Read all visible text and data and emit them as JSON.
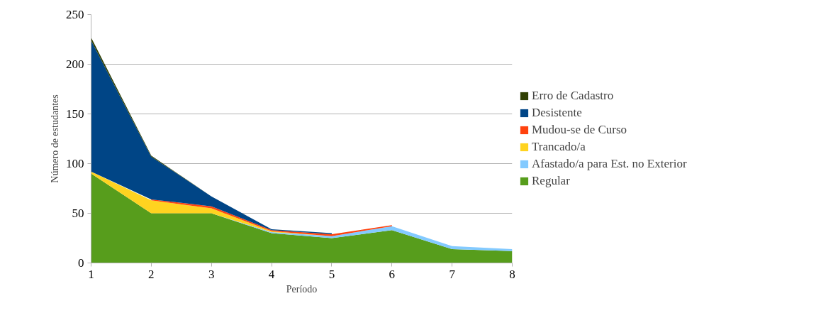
{
  "chart_data": {
    "type": "area",
    "stacked": true,
    "xlabel": "Período",
    "ylabel": "Número de estudantes",
    "x": [
      1,
      2,
      3,
      4,
      5,
      6,
      7,
      8
    ],
    "xlim": [
      1,
      8
    ],
    "xticks": [
      1,
      2,
      3,
      4,
      5,
      6,
      7,
      8
    ],
    "ylim": [
      0,
      250
    ],
    "yticks": [
      0,
      50,
      100,
      150,
      200,
      250
    ],
    "grid": "y",
    "legend": "right",
    "series": [
      {
        "name": "Regular",
        "color": "#579d1c",
        "values": [
          90,
          50,
          50,
          30,
          25,
          33,
          14,
          12
        ]
      },
      {
        "name": "Afastado/a para Est. no Exterior",
        "color": "#83caff",
        "values": [
          null,
          null,
          0,
          1,
          2,
          4,
          3,
          2
        ]
      },
      {
        "name": "Trancado/a",
        "color": "#ffd320",
        "values": [
          2,
          13,
          5,
          1,
          0,
          null,
          null,
          null
        ]
      },
      {
        "name": "Mudou-se de Curso",
        "color": "#ff420e",
        "values": [
          null,
          1,
          2,
          1,
          2,
          1,
          null,
          null
        ]
      },
      {
        "name": "Desistente",
        "color": "#004586",
        "values": [
          132,
          43,
          10,
          1,
          1,
          null,
          null,
          null
        ]
      },
      {
        "name": "Erro de Cadastro",
        "color": "#314004",
        "values": [
          3,
          1,
          0,
          null,
          null,
          null,
          null,
          null
        ]
      }
    ]
  }
}
